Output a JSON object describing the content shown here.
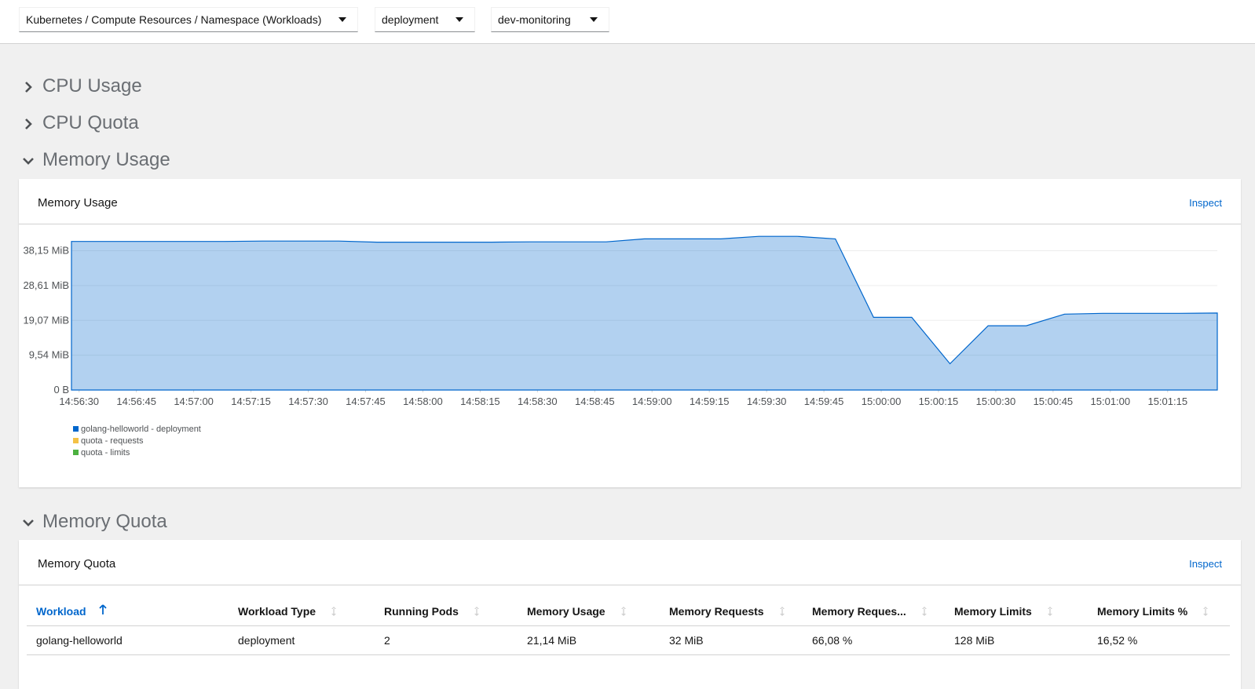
{
  "toolbar": {
    "dropdowns": [
      "Kubernetes / Compute Resources / Namespace (Workloads)",
      "deployment",
      "dev-monitoring"
    ]
  },
  "sections": [
    {
      "title": "CPU Usage",
      "expanded": false
    },
    {
      "title": "CPU Quota",
      "expanded": false
    },
    {
      "title": "Memory Usage",
      "expanded": true
    },
    {
      "title": "Memory Quota",
      "expanded": true
    }
  ],
  "chart_data": {
    "type": "area",
    "title": "Memory Usage",
    "link": "Inspect",
    "x": [
      "14:56:28",
      "14:56:38",
      "14:56:48",
      "14:56:58",
      "14:57:08",
      "14:57:18",
      "14:57:28",
      "14:57:38",
      "14:57:48",
      "14:57:58",
      "14:58:08",
      "14:58:18",
      "14:58:28",
      "14:58:38",
      "14:58:48",
      "14:58:58",
      "14:59:08",
      "14:59:18",
      "14:59:28",
      "14:59:38",
      "14:59:48",
      "14:59:58",
      "15:00:08",
      "15:00:18",
      "15:00:28",
      "15:00:38",
      "15:00:48",
      "15:00:58",
      "15:01:08",
      "15:01:18",
      "15:01:28"
    ],
    "series": [
      {
        "name": "golang-helloworld - deployment",
        "color": "#0066cc",
        "values": [
          40.7,
          40.7,
          40.7,
          40.7,
          40.7,
          40.8,
          40.8,
          40.8,
          40.5,
          40.5,
          40.5,
          40.5,
          40.6,
          40.6,
          40.6,
          41.4,
          41.4,
          41.4,
          42.1,
          42.1,
          41.4,
          19.9,
          19.9,
          7.2,
          17.6,
          17.6,
          20.8,
          21.0,
          21.0,
          21.0,
          21.1
        ]
      },
      {
        "name": "quota - requests",
        "color": "#f4c145"
      },
      {
        "name": "quota - limits",
        "color": "#4cb140"
      }
    ],
    "xlim": [
      "14:56:28",
      "15:01:28"
    ],
    "xticks": [
      "14:56:30",
      "14:56:45",
      "14:57:00",
      "14:57:15",
      "14:57:30",
      "14:57:45",
      "14:58:00",
      "14:58:15",
      "14:58:30",
      "14:58:45",
      "14:59:00",
      "14:59:15",
      "14:59:30",
      "14:59:45",
      "15:00:00",
      "15:00:15",
      "15:00:30",
      "15:00:45",
      "15:01:00",
      "15:01:15"
    ],
    "ylim": [
      0,
      43
    ],
    "yticks": [
      {
        "value": 0,
        "label": "0 B"
      },
      {
        "value": 9.54,
        "label": "9,54 MiB"
      },
      {
        "value": 19.07,
        "label": "19,07 MiB"
      },
      {
        "value": 28.61,
        "label": "28,61 MiB"
      },
      {
        "value": 38.15,
        "label": "38,15 MiB"
      }
    ],
    "grid": true
  },
  "table": {
    "title": "Memory Quota",
    "link": "Inspect",
    "columns": [
      "Workload",
      "Workload Type",
      "Running Pods",
      "Memory Usage",
      "Memory Requests",
      "Memory Reques...",
      "Memory Limits",
      "Memory Limits %"
    ],
    "rows": [
      [
        "golang-helloworld",
        "deployment",
        "2",
        "21,14 MiB",
        "32 MiB",
        "66,08 %",
        "128 MiB",
        "16,52 %"
      ]
    ]
  }
}
